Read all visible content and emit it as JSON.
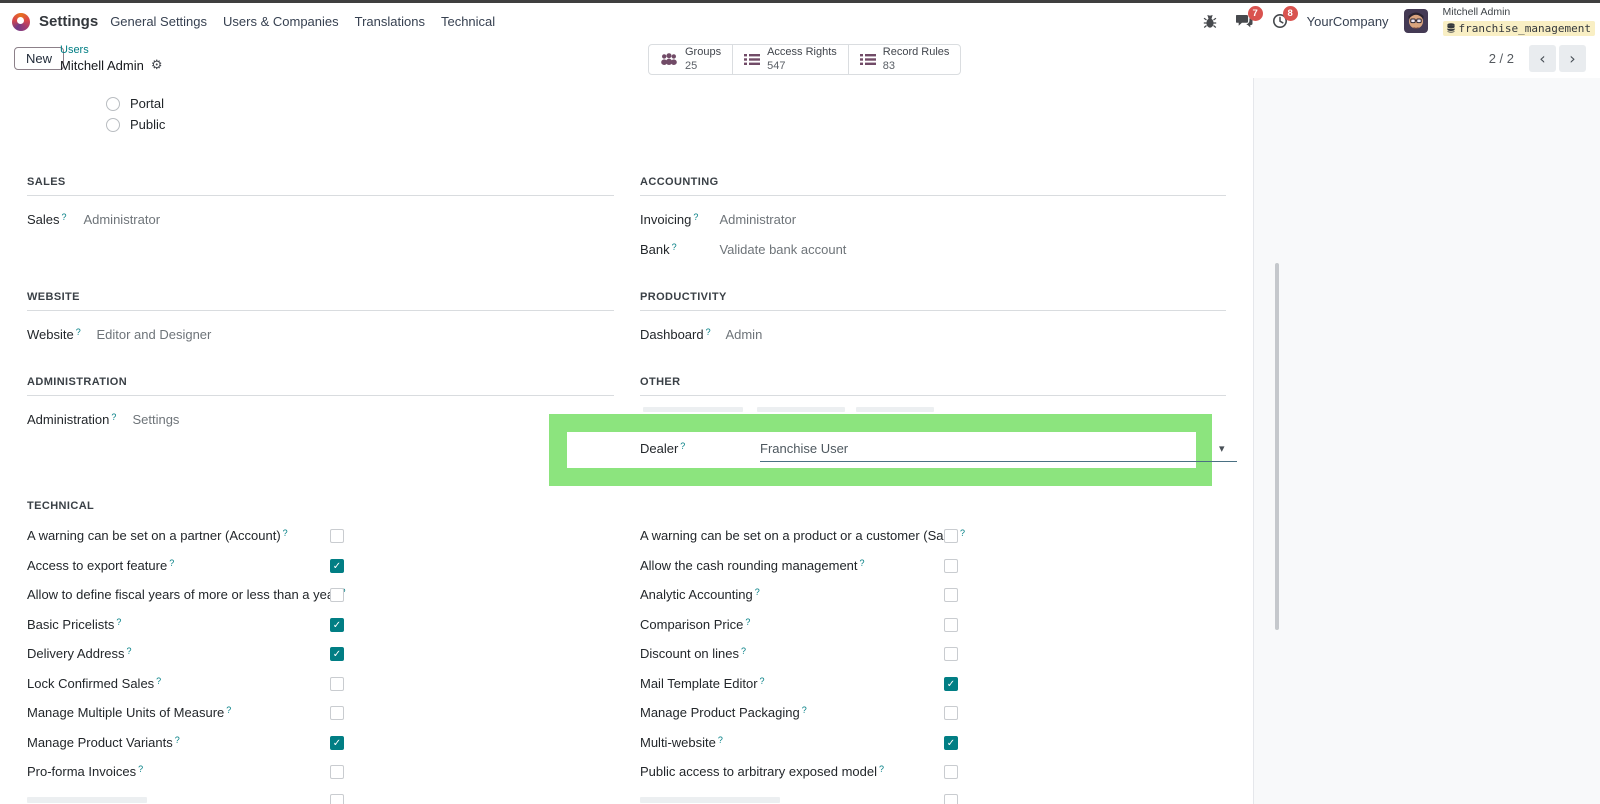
{
  "navbar": {
    "app_name": "Settings",
    "menu_items": [
      "General Settings",
      "Users & Companies",
      "Translations",
      "Technical"
    ]
  },
  "systray": {
    "messages_badge": "7",
    "activities_badge": "8",
    "company_name": "YourCompany",
    "user_name": "Mitchell Admin",
    "database_name": "franchise_management"
  },
  "control_panel": {
    "new_button": "New",
    "breadcrumb": {
      "parent": "Users",
      "current": "Mitchell Admin"
    },
    "stat_buttons": [
      {
        "label": "Groups",
        "value": "25",
        "icon": "users-icon"
      },
      {
        "label": "Access Rights",
        "value": "547",
        "icon": "list-icon"
      },
      {
        "label": "Record Rules",
        "value": "83",
        "icon": "list-icon"
      }
    ],
    "pager": {
      "text": "2 / 2",
      "prev": "‹",
      "next": "›"
    }
  },
  "form": {
    "help_marker": "?",
    "user_type_options": [
      {
        "label": "Portal",
        "selected": false
      },
      {
        "label": "Public",
        "selected": false
      }
    ],
    "sections": {
      "sales": {
        "title": "SALES",
        "fields": [
          {
            "label": "Sales",
            "value": "Administrator"
          }
        ]
      },
      "accounting": {
        "title": "ACCOUNTING",
        "fields": [
          {
            "label": "Invoicing",
            "value": "Administrator"
          },
          {
            "label": "Bank",
            "value": "Validate bank account"
          }
        ]
      },
      "website": {
        "title": "WEBSITE",
        "fields": [
          {
            "label": "Website",
            "value": "Editor and Designer"
          }
        ]
      },
      "productivity": {
        "title": "PRODUCTIVITY",
        "fields": [
          {
            "label": "Dashboard",
            "value": "Admin"
          }
        ]
      },
      "administration": {
        "title": "ADMINISTRATION",
        "fields": [
          {
            "label": "Administration",
            "value": "Settings"
          }
        ]
      },
      "other": {
        "title": "OTHER",
        "dealer": {
          "label": "Dealer",
          "value": "Franchise User"
        }
      },
      "technical": {
        "title": "TECHNICAL",
        "left": [
          {
            "label": "A warning can be set on a partner (Account)",
            "checked": false
          },
          {
            "label": "Access to export feature",
            "checked": true
          },
          {
            "label": "Allow to define fiscal years of more or less than a year",
            "checked": false
          },
          {
            "label": "Basic Pricelists",
            "checked": true
          },
          {
            "label": "Delivery Address",
            "checked": true
          },
          {
            "label": "Lock Confirmed Sales",
            "checked": false
          },
          {
            "label": "Manage Multiple Units of Measure",
            "checked": false
          },
          {
            "label": "Manage Product Variants",
            "checked": true
          },
          {
            "label": "Pro-forma Invoices",
            "checked": false
          }
        ],
        "right": [
          {
            "label": "A warning can be set on a product or a customer (Sale)",
            "checked": false
          },
          {
            "label": "Allow the cash rounding management",
            "checked": false
          },
          {
            "label": "Analytic Accounting",
            "checked": false
          },
          {
            "label": "Comparison Price",
            "checked": false
          },
          {
            "label": "Discount on lines",
            "checked": false
          },
          {
            "label": "Mail Template Editor",
            "checked": true
          },
          {
            "label": "Manage Product Packaging",
            "checked": false
          },
          {
            "label": "Multi-website",
            "checked": true
          },
          {
            "label": "Public access to arbitrary exposed model",
            "checked": false
          }
        ]
      }
    }
  },
  "colors": {
    "accent_teal": "#017e84",
    "brand_maroon": "#714B67",
    "highlight_green": "#8ce47e",
    "badge_red": "#d9534f",
    "db_badge_bg": "#f9efc4"
  }
}
